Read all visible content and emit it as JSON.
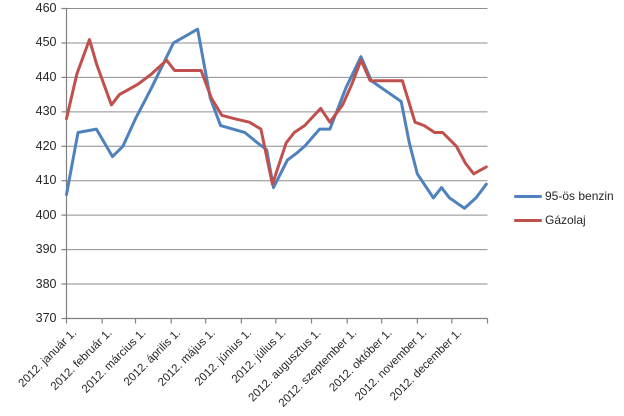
{
  "chart_data": {
    "type": "line",
    "title": "",
    "xlabel": "",
    "ylabel": "",
    "legend_position": "right",
    "grid": true,
    "colors": {
      "benzin": "#4F81BD",
      "gazolaj": "#C0504D",
      "grid": "#8E8E8E",
      "axis": "#808080",
      "text": "#262626"
    },
    "y_axis": {
      "min": 370,
      "max": 460,
      "tick_step": 10,
      "ticks": [
        460,
        450,
        440,
        430,
        420,
        410,
        400,
        390,
        380,
        370
      ]
    },
    "x_axis": {
      "categories": [
        "2012. január 1.",
        "2012. február 1.",
        "2012. március 1.",
        "2012. április 1.",
        "2012. május 1.",
        "2012. június 1.",
        "2012. július 1.",
        "2012. augusztus 1.",
        "2012. szeptember 1.",
        "2012. október 1.",
        "2012. november 1.",
        "2012. december 1."
      ],
      "label_rotation": -45
    },
    "series": [
      {
        "name": "95-ös benzin",
        "color": "#4F81BD",
        "points": [
          {
            "date": "2012-01-01",
            "value": 406
          },
          {
            "date": "2012-01-11",
            "value": 424
          },
          {
            "date": "2012-01-27",
            "value": 425
          },
          {
            "date": "2012-02-10",
            "value": 417
          },
          {
            "date": "2012-02-19",
            "value": 420
          },
          {
            "date": "2012-03-01",
            "value": 428
          },
          {
            "date": "2012-03-15",
            "value": 437
          },
          {
            "date": "2012-04-03",
            "value": 450
          },
          {
            "date": "2012-04-24",
            "value": 454
          },
          {
            "date": "2012-05-05",
            "value": 434
          },
          {
            "date": "2012-05-14",
            "value": 426
          },
          {
            "date": "2012-06-04",
            "value": 424
          },
          {
            "date": "2012-06-15",
            "value": 421
          },
          {
            "date": "2012-06-23",
            "value": 419
          },
          {
            "date": "2012-06-29",
            "value": 408
          },
          {
            "date": "2012-07-11",
            "value": 416
          },
          {
            "date": "2012-07-19",
            "value": 418
          },
          {
            "date": "2012-07-26",
            "value": 420
          },
          {
            "date": "2012-08-08",
            "value": 425
          },
          {
            "date": "2012-08-17",
            "value": 425
          },
          {
            "date": "2012-08-31",
            "value": 437
          },
          {
            "date": "2012-09-13",
            "value": 446
          },
          {
            "date": "2012-09-22",
            "value": 439
          },
          {
            "date": "2012-10-05",
            "value": 436
          },
          {
            "date": "2012-10-18",
            "value": 433
          },
          {
            "date": "2012-10-25",
            "value": 421
          },
          {
            "date": "2012-11-01",
            "value": 412
          },
          {
            "date": "2012-11-15",
            "value": 405
          },
          {
            "date": "2012-11-22",
            "value": 408
          },
          {
            "date": "2012-11-29",
            "value": 405
          },
          {
            "date": "2012-12-12",
            "value": 402
          },
          {
            "date": "2012-12-22",
            "value": 405
          },
          {
            "date": "2012-12-31",
            "value": 409
          }
        ]
      },
      {
        "name": "Gázolaj",
        "color": "#C0504D",
        "points": [
          {
            "date": "2012-01-01",
            "value": 428
          },
          {
            "date": "2012-01-10",
            "value": 441
          },
          {
            "date": "2012-01-21",
            "value": 451
          },
          {
            "date": "2012-01-27",
            "value": 444
          },
          {
            "date": "2012-02-09",
            "value": 432
          },
          {
            "date": "2012-02-16",
            "value": 435
          },
          {
            "date": "2012-03-03",
            "value": 438
          },
          {
            "date": "2012-03-15",
            "value": 441
          },
          {
            "date": "2012-03-28",
            "value": 445
          },
          {
            "date": "2012-04-04",
            "value": 442
          },
          {
            "date": "2012-04-27",
            "value": 442
          },
          {
            "date": "2012-05-06",
            "value": 434
          },
          {
            "date": "2012-05-15",
            "value": 429
          },
          {
            "date": "2012-05-26",
            "value": 428
          },
          {
            "date": "2012-06-08",
            "value": 427
          },
          {
            "date": "2012-06-18",
            "value": 425
          },
          {
            "date": "2012-06-28",
            "value": 409
          },
          {
            "date": "2012-07-10",
            "value": 421
          },
          {
            "date": "2012-07-17",
            "value": 424
          },
          {
            "date": "2012-07-26",
            "value": 426
          },
          {
            "date": "2012-08-09",
            "value": 431
          },
          {
            "date": "2012-08-17",
            "value": 427
          },
          {
            "date": "2012-08-28",
            "value": 432
          },
          {
            "date": "2012-09-05",
            "value": 438
          },
          {
            "date": "2012-09-13",
            "value": 445
          },
          {
            "date": "2012-09-21",
            "value": 439
          },
          {
            "date": "2012-10-19",
            "value": 439
          },
          {
            "date": "2012-10-30",
            "value": 427
          },
          {
            "date": "2012-11-07",
            "value": 426
          },
          {
            "date": "2012-11-16",
            "value": 424
          },
          {
            "date": "2012-11-23",
            "value": 424
          },
          {
            "date": "2012-12-05",
            "value": 420
          },
          {
            "date": "2012-12-13",
            "value": 415
          },
          {
            "date": "2012-12-20",
            "value": 412
          },
          {
            "date": "2012-12-31",
            "value": 414
          }
        ]
      }
    ]
  }
}
